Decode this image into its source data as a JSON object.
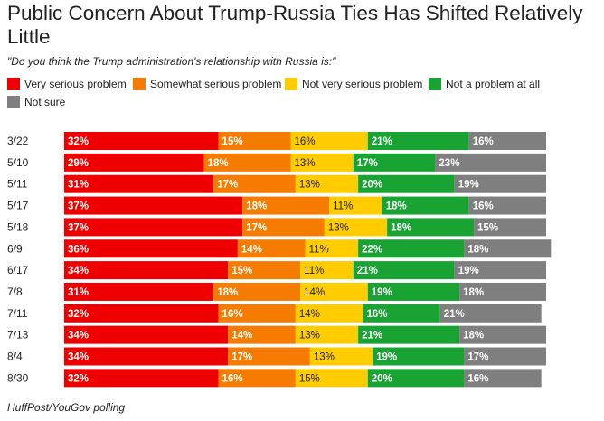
{
  "chart_data": {
    "type": "bar",
    "orientation": "horizontal",
    "stacked": true,
    "title": "Public Concern About Trump-Russia Ties Has Shifted Relatively Little",
    "subtitle": "\"Do you think the Trump administration's relationship with Russia is:\"",
    "source": "HuffPost/YouGov polling",
    "legend_position": "top",
    "categories": [
      "3/22",
      "5/10",
      "5/11",
      "5/17",
      "5/18",
      "6/9",
      "6/17",
      "7/8",
      "7/11",
      "7/13",
      "8/4",
      "8/30"
    ],
    "series": [
      {
        "name": "Very serious problem",
        "color": "#ee0000",
        "values": [
          32,
          29,
          31,
          37,
          37,
          36,
          34,
          31,
          32,
          34,
          34,
          32
        ]
      },
      {
        "name": "Somewhat serious problem",
        "color": "#f57c00",
        "values": [
          15,
          18,
          17,
          18,
          17,
          14,
          15,
          18,
          16,
          14,
          17,
          16
        ]
      },
      {
        "name": "Not very serious problem",
        "color": "#ffcc00",
        "values": [
          16,
          13,
          13,
          11,
          13,
          11,
          11,
          14,
          14,
          13,
          13,
          15
        ]
      },
      {
        "name": "Not a problem at all",
        "color": "#18a333",
        "values": [
          21,
          17,
          20,
          18,
          18,
          22,
          21,
          19,
          16,
          21,
          19,
          20
        ]
      },
      {
        "name": "Not sure",
        "color": "#7f7f7f",
        "values": [
          16,
          23,
          19,
          16,
          15,
          18,
          19,
          18,
          21,
          18,
          17,
          16
        ]
      }
    ],
    "value_suffix": "%",
    "grid": false
  }
}
